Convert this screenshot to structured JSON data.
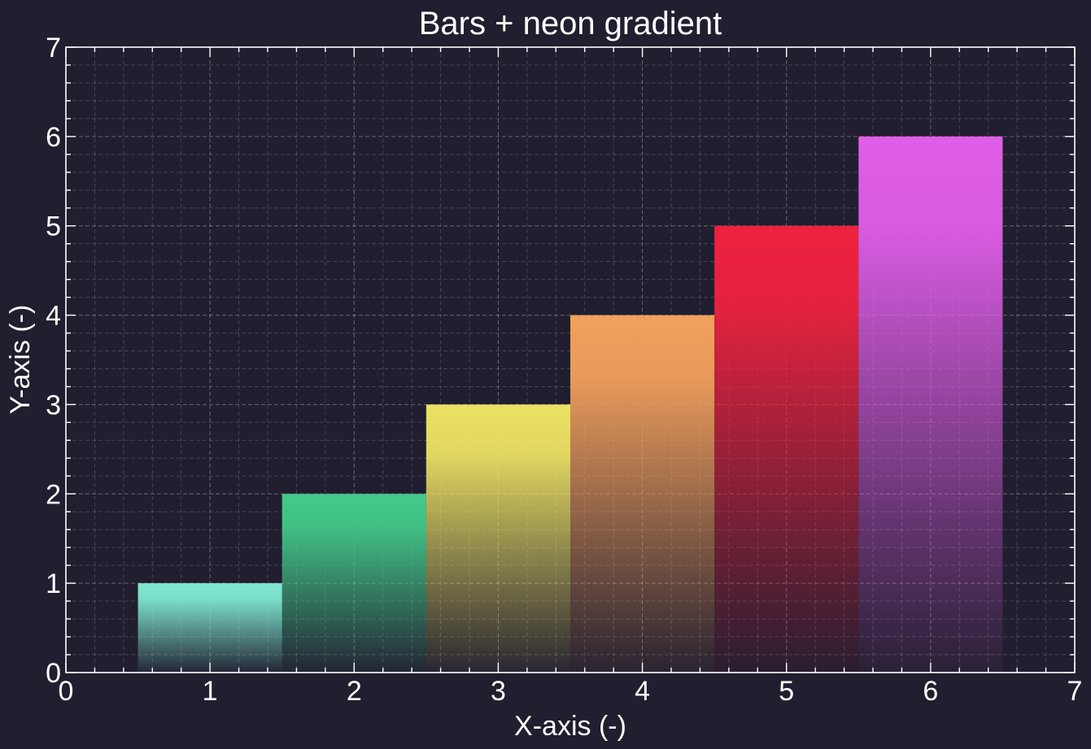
{
  "chart_data": {
    "type": "bar",
    "title": "Bars + neon gradient",
    "xlabel": "X-axis (-)",
    "ylabel": "Y-axis (-)",
    "xlim": [
      0,
      7
    ],
    "ylim": [
      0,
      7
    ],
    "x_ticks": [
      0,
      1,
      2,
      3,
      4,
      5,
      6,
      7
    ],
    "y_ticks": [
      0,
      1,
      2,
      3,
      4,
      5,
      6,
      7
    ],
    "grid": true,
    "grid_minor": true,
    "bar_width": 1,
    "x": [
      1,
      2,
      3,
      4,
      5,
      6
    ],
    "values": [
      1,
      2,
      3,
      4,
      5,
      6
    ],
    "bar_colors": [
      "#7fe8d0",
      "#43c98a",
      "#ebe163",
      "#f2a05c",
      "#ee223f",
      "#e05ee8"
    ],
    "background_color": "#211e2f",
    "foreground_color": "#ffffff"
  }
}
